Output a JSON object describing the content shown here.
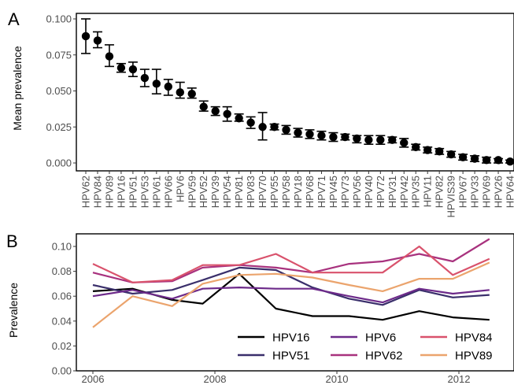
{
  "chart_data": [
    {
      "panel": "A",
      "type": "scatter",
      "ylabel": "Mean prevalence",
      "xlabel": "",
      "ylim": [
        0,
        0.1
      ],
      "yticks": [
        "0.000",
        "0.025",
        "0.050",
        "0.075",
        "0.100"
      ],
      "grid": false,
      "errorbars": true,
      "categories": [
        "HPV62",
        "HPV84",
        "HPV89",
        "HPV16",
        "HPV51",
        "HPV53",
        "HPV61",
        "HPV66",
        "HPV6",
        "HPV59",
        "HPV52",
        "HPV39",
        "HPV54",
        "HPV81",
        "HPV83",
        "HPV70",
        "HPV55",
        "HPV58",
        "HPV18",
        "HPV68",
        "HPV71",
        "HPV45",
        "HPV73",
        "HPV56",
        "HPV40",
        "HPV72",
        "HPV31",
        "HPV42",
        "HPV35",
        "HPV11",
        "HPV82",
        "HPVIS39",
        "HPV67",
        "HPV33",
        "HPV69",
        "HPV26",
        "HPV64"
      ],
      "values": [
        0.088,
        0.085,
        0.074,
        0.066,
        0.065,
        0.059,
        0.055,
        0.053,
        0.049,
        0.048,
        0.039,
        0.036,
        0.034,
        0.031,
        0.028,
        0.025,
        0.025,
        0.023,
        0.021,
        0.02,
        0.019,
        0.018,
        0.018,
        0.017,
        0.016,
        0.016,
        0.016,
        0.014,
        0.011,
        0.009,
        0.008,
        0.006,
        0.004,
        0.003,
        0.002,
        0.002,
        0.001
      ],
      "lower": [
        0.076,
        0.08,
        0.067,
        0.063,
        0.06,
        0.053,
        0.048,
        0.047,
        0.045,
        0.045,
        0.036,
        0.033,
        0.029,
        0.029,
        0.024,
        0.016,
        0.023,
        0.02,
        0.018,
        0.017,
        0.016,
        0.015,
        0.016,
        0.014,
        0.013,
        0.013,
        0.014,
        0.011,
        0.009,
        0.007,
        0.006,
        0.004,
        0.002,
        0.001,
        0.0,
        0.0,
        0.0
      ],
      "upper": [
        0.1,
        0.091,
        0.082,
        0.069,
        0.07,
        0.065,
        0.065,
        0.058,
        0.056,
        0.052,
        0.043,
        0.039,
        0.039,
        0.034,
        0.032,
        0.035,
        0.027,
        0.026,
        0.024,
        0.023,
        0.022,
        0.021,
        0.02,
        0.019,
        0.019,
        0.019,
        0.018,
        0.017,
        0.013,
        0.011,
        0.01,
        0.008,
        0.006,
        0.005,
        0.004,
        0.003,
        0.002
      ],
      "color": "#000000"
    },
    {
      "panel": "B",
      "type": "line",
      "ylabel": "Prevalence",
      "xlabel": "",
      "xlim": [
        2006,
        2012.5
      ],
      "ylim": [
        0,
        0.105
      ],
      "xticks": [
        2006,
        2008,
        2010,
        2012
      ],
      "yticks": [
        "0.00",
        "0.02",
        "0.04",
        "0.06",
        "0.08",
        "0.10"
      ],
      "grid": false,
      "legend_position": "bottom-right",
      "x": [
        2006,
        2006.65,
        2007.3,
        2007.8,
        2008.4,
        2009,
        2009.6,
        2010.2,
        2010.75,
        2011.35,
        2011.9,
        2012.5
      ],
      "series": [
        {
          "name": "HPV16",
          "color": "#000000",
          "values": [
            0.064,
            0.066,
            0.057,
            0.054,
            0.078,
            0.05,
            0.044,
            0.044,
            0.041,
            0.048,
            0.043,
            0.041
          ]
        },
        {
          "name": "HPV51",
          "color": "#3a2f6b",
          "values": [
            0.069,
            0.062,
            0.065,
            0.073,
            0.083,
            0.081,
            0.067,
            0.058,
            0.053,
            0.065,
            0.059,
            0.061
          ]
        },
        {
          "name": "HPV6",
          "color": "#6d2a8a",
          "values": [
            0.06,
            0.065,
            0.058,
            0.066,
            0.067,
            0.066,
            0.066,
            0.06,
            0.055,
            0.066,
            0.062,
            0.065
          ]
        },
        {
          "name": "HPV62",
          "color": "#a8327e",
          "values": [
            0.079,
            0.071,
            0.072,
            0.083,
            0.085,
            0.083,
            0.079,
            0.086,
            0.088,
            0.094,
            0.088,
            0.106
          ]
        },
        {
          "name": "HPV84",
          "color": "#d9526c",
          "values": [
            0.086,
            0.071,
            0.073,
            0.085,
            0.085,
            0.094,
            0.079,
            0.079,
            0.079,
            0.1,
            0.077,
            0.09
          ]
        },
        {
          "name": "HPV89",
          "color": "#eba46d",
          "values": [
            0.035,
            0.06,
            0.052,
            0.07,
            0.077,
            0.078,
            0.075,
            0.069,
            0.064,
            0.074,
            0.074,
            0.087
          ]
        }
      ]
    }
  ]
}
